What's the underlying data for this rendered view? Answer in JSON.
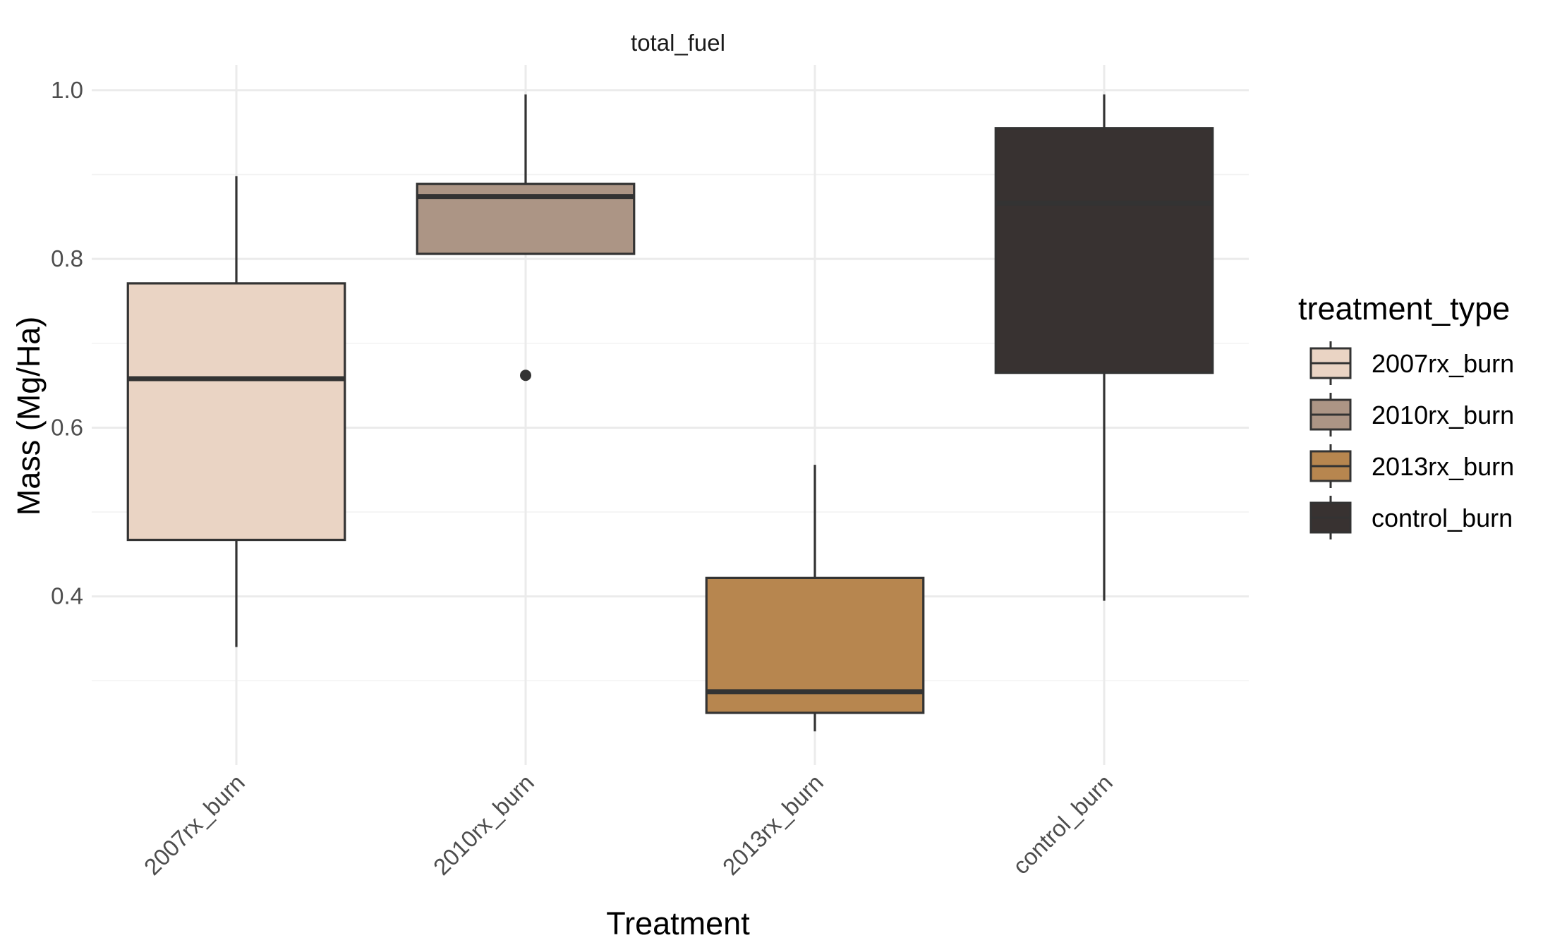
{
  "chart_data": {
    "type": "boxplot",
    "facet_title": "total_fuel",
    "xlabel": "Treatment",
    "ylabel": "Mass (Mg/Ha)",
    "categories": [
      "2007rx_burn",
      "2010rx_burn",
      "2013rx_burn",
      "control_burn"
    ],
    "ylim": [
      0.2,
      1.03
    ],
    "y_ticks": [
      0.4,
      0.6,
      0.8,
      1.0
    ],
    "y_tick_labels": [
      "0.4",
      "0.6",
      "0.8",
      "1.0"
    ],
    "grid": true,
    "legend_position": "right",
    "legend": {
      "title": "treatment_type",
      "entries": [
        "2007rx_burn",
        "2010rx_burn",
        "2013rx_burn",
        "control_burn"
      ]
    },
    "series": [
      {
        "category": "2007rx_burn",
        "color": "#ead4c4",
        "whisker_low": 0.34,
        "q1": 0.467,
        "median": 0.658,
        "q3": 0.771,
        "whisker_high": 0.898,
        "outliers": []
      },
      {
        "category": "2010rx_burn",
        "color": "#ac9585",
        "whisker_low": 0.806,
        "q1": 0.806,
        "median": 0.874,
        "q3": 0.889,
        "whisker_high": 0.995,
        "outliers": [
          0.662
        ]
      },
      {
        "category": "2013rx_burn",
        "color": "#b7864f",
        "whisker_low": 0.24,
        "q1": 0.262,
        "median": 0.287,
        "q3": 0.422,
        "whisker_high": 0.556,
        "outliers": []
      },
      {
        "category": "control_burn",
        "color": "#383231",
        "whisker_low": 0.395,
        "q1": 0.665,
        "median": 0.866,
        "q3": 0.955,
        "whisker_high": 0.995,
        "outliers": []
      }
    ]
  }
}
